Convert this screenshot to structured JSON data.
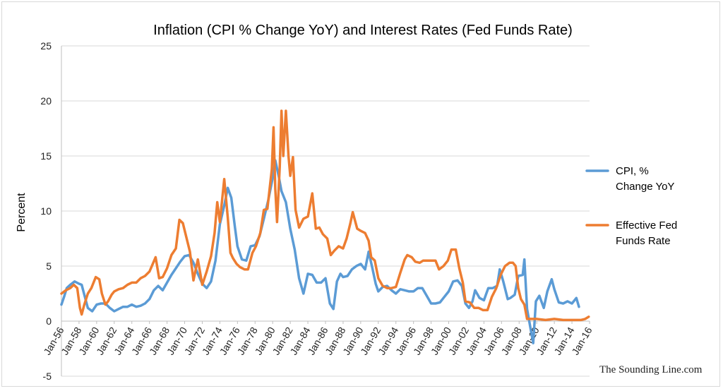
{
  "chart_data": {
    "type": "line",
    "title": "Inflation (CPI % Change YoY) and Interest Rates (Fed Funds Rate)",
    "ylabel": "Percent",
    "xlabel": "",
    "ylim": [
      -5,
      25
    ],
    "yticks": [
      -5,
      0,
      5,
      10,
      15,
      20,
      25
    ],
    "grid": "horizontal",
    "legend_position": "right",
    "x_tick_labels": [
      "Jan-56",
      "Jan-58",
      "Jan-60",
      "Jan-62",
      "Jan-64",
      "Jan-66",
      "Jan-68",
      "Jan-70",
      "Jan-72",
      "Jan-74",
      "Jan-76",
      "Jan-78",
      "Jan-80",
      "Jan-82",
      "Jan-84",
      "Jan-86",
      "Jan-88",
      "Jan-90",
      "Jan-92",
      "Jan-94",
      "Jan-96",
      "Jan-98",
      "Jan-00",
      "Jan-02",
      "Jan-04",
      "Jan-06",
      "Jan-08",
      "Jan-10",
      "Jan-12",
      "Jan-14",
      "Jan-16"
    ],
    "x_tick_years": [
      1956,
      1958,
      1960,
      1962,
      1964,
      1966,
      1968,
      1970,
      1972,
      1974,
      1976,
      1978,
      1980,
      1982,
      1984,
      1986,
      1988,
      1990,
      1992,
      1994,
      1996,
      1998,
      2000,
      2002,
      2004,
      2006,
      2008,
      2010,
      2012,
      2014,
      2016
    ],
    "series": [
      {
        "name": "CPI, % Change YoY",
        "color": "#5b9bd5",
        "points": [
          [
            1956.0,
            1.5
          ],
          [
            1956.3,
            2.2
          ],
          [
            1956.6,
            3.0
          ],
          [
            1957.0,
            3.3
          ],
          [
            1957.5,
            3.6
          ],
          [
            1958.0,
            3.4
          ],
          [
            1958.3,
            3.3
          ],
          [
            1958.6,
            2.4
          ],
          [
            1959.0,
            1.2
          ],
          [
            1959.5,
            0.9
          ],
          [
            1960.0,
            1.5
          ],
          [
            1960.5,
            1.6
          ],
          [
            1961.0,
            1.6
          ],
          [
            1961.5,
            1.2
          ],
          [
            1962.0,
            0.9
          ],
          [
            1962.5,
            1.1
          ],
          [
            1963.0,
            1.3
          ],
          [
            1963.5,
            1.3
          ],
          [
            1964.0,
            1.5
          ],
          [
            1964.5,
            1.3
          ],
          [
            1965.0,
            1.4
          ],
          [
            1965.5,
            1.6
          ],
          [
            1966.0,
            2.0
          ],
          [
            1966.5,
            2.8
          ],
          [
            1967.0,
            3.2
          ],
          [
            1967.5,
            2.8
          ],
          [
            1968.0,
            3.5
          ],
          [
            1968.5,
            4.2
          ],
          [
            1969.0,
            4.8
          ],
          [
            1969.5,
            5.4
          ],
          [
            1970.0,
            5.9
          ],
          [
            1970.5,
            6.0
          ],
          [
            1971.0,
            5.3
          ],
          [
            1971.5,
            4.3
          ],
          [
            1972.0,
            3.4
          ],
          [
            1972.5,
            3.0
          ],
          [
            1973.0,
            3.6
          ],
          [
            1973.5,
            5.5
          ],
          [
            1974.0,
            8.8
          ],
          [
            1974.5,
            10.5
          ],
          [
            1974.9,
            12.1
          ],
          [
            1975.3,
            11.2
          ],
          [
            1975.7,
            8.6
          ],
          [
            1976.0,
            6.8
          ],
          [
            1976.5,
            5.6
          ],
          [
            1977.0,
            5.5
          ],
          [
            1977.5,
            6.8
          ],
          [
            1978.0,
            6.9
          ],
          [
            1978.5,
            7.7
          ],
          [
            1979.0,
            9.3
          ],
          [
            1979.5,
            11.0
          ],
          [
            1980.0,
            13.0
          ],
          [
            1980.3,
            14.6
          ],
          [
            1980.7,
            13.1
          ],
          [
            1981.0,
            11.8
          ],
          [
            1981.5,
            10.8
          ],
          [
            1982.0,
            8.4
          ],
          [
            1982.5,
            6.5
          ],
          [
            1983.0,
            3.9
          ],
          [
            1983.5,
            2.5
          ],
          [
            1984.0,
            4.3
          ],
          [
            1984.5,
            4.2
          ],
          [
            1985.0,
            3.5
          ],
          [
            1985.5,
            3.5
          ],
          [
            1986.0,
            3.9
          ],
          [
            1986.5,
            1.6
          ],
          [
            1986.9,
            1.1
          ],
          [
            1987.3,
            3.6
          ],
          [
            1987.7,
            4.3
          ],
          [
            1988.0,
            4.0
          ],
          [
            1988.5,
            4.1
          ],
          [
            1989.0,
            4.7
          ],
          [
            1989.5,
            5.0
          ],
          [
            1990.0,
            5.2
          ],
          [
            1990.5,
            4.7
          ],
          [
            1990.9,
            6.3
          ],
          [
            1991.3,
            4.9
          ],
          [
            1991.7,
            3.4
          ],
          [
            1992.0,
            2.7
          ],
          [
            1992.5,
            3.1
          ],
          [
            1993.0,
            3.2
          ],
          [
            1993.5,
            2.8
          ],
          [
            1994.0,
            2.5
          ],
          [
            1994.5,
            2.9
          ],
          [
            1995.0,
            2.8
          ],
          [
            1995.5,
            2.7
          ],
          [
            1996.0,
            2.7
          ],
          [
            1996.5,
            3.0
          ],
          [
            1997.0,
            3.0
          ],
          [
            1997.5,
            2.3
          ],
          [
            1998.0,
            1.6
          ],
          [
            1998.5,
            1.6
          ],
          [
            1999.0,
            1.7
          ],
          [
            1999.5,
            2.2
          ],
          [
            2000.0,
            2.7
          ],
          [
            2000.5,
            3.6
          ],
          [
            2001.0,
            3.7
          ],
          [
            2001.5,
            3.2
          ],
          [
            2001.9,
            1.6
          ],
          [
            2002.3,
            1.2
          ],
          [
            2002.7,
            1.8
          ],
          [
            2003.0,
            2.8
          ],
          [
            2003.5,
            2.1
          ],
          [
            2004.0,
            1.9
          ],
          [
            2004.5,
            3.0
          ],
          [
            2005.0,
            3.0
          ],
          [
            2005.5,
            3.2
          ],
          [
            2005.8,
            4.7
          ],
          [
            2006.2,
            3.6
          ],
          [
            2006.7,
            2.0
          ],
          [
            2007.0,
            2.1
          ],
          [
            2007.5,
            2.4
          ],
          [
            2007.9,
            4.1
          ],
          [
            2008.4,
            4.2
          ],
          [
            2008.6,
            5.6
          ],
          [
            2008.9,
            1.1
          ],
          [
            2009.3,
            -0.7
          ],
          [
            2009.6,
            -2.0
          ],
          [
            2009.9,
            1.8
          ],
          [
            2010.3,
            2.3
          ],
          [
            2010.8,
            1.2
          ],
          [
            2011.2,
            2.7
          ],
          [
            2011.7,
            3.8
          ],
          [
            2012.0,
            2.9
          ],
          [
            2012.5,
            1.7
          ],
          [
            2013.0,
            1.6
          ],
          [
            2013.5,
            1.8
          ],
          [
            2014.0,
            1.6
          ],
          [
            2014.5,
            2.1
          ],
          [
            2014.8,
            1.3
          ]
        ]
      },
      {
        "name": "Effective Fed Funds Rate",
        "color": "#ed7d31",
        "points": [
          [
            1956.0,
            2.5
          ],
          [
            1956.5,
            2.8
          ],
          [
            1957.0,
            3.0
          ],
          [
            1957.4,
            3.3
          ],
          [
            1957.8,
            3.0
          ],
          [
            1958.1,
            1.2
          ],
          [
            1958.3,
            0.6
          ],
          [
            1958.6,
            1.5
          ],
          [
            1959.0,
            2.5
          ],
          [
            1959.4,
            3.0
          ],
          [
            1959.9,
            4.0
          ],
          [
            1960.3,
            3.8
          ],
          [
            1960.6,
            2.5
          ],
          [
            1961.0,
            1.5
          ],
          [
            1961.3,
            1.8
          ],
          [
            1961.7,
            2.4
          ],
          [
            1962.0,
            2.7
          ],
          [
            1962.5,
            2.9
          ],
          [
            1963.0,
            3.0
          ],
          [
            1963.5,
            3.3
          ],
          [
            1964.0,
            3.5
          ],
          [
            1964.5,
            3.5
          ],
          [
            1965.0,
            3.9
          ],
          [
            1965.5,
            4.1
          ],
          [
            1966.0,
            4.5
          ],
          [
            1966.7,
            5.8
          ],
          [
            1967.1,
            3.9
          ],
          [
            1967.5,
            4.0
          ],
          [
            1968.0,
            4.8
          ],
          [
            1968.5,
            6.0
          ],
          [
            1969.0,
            6.6
          ],
          [
            1969.4,
            9.2
          ],
          [
            1969.8,
            8.9
          ],
          [
            1970.2,
            7.6
          ],
          [
            1970.6,
            6.3
          ],
          [
            1971.0,
            3.7
          ],
          [
            1971.5,
            5.6
          ],
          [
            1972.0,
            3.3
          ],
          [
            1972.5,
            4.5
          ],
          [
            1973.0,
            5.9
          ],
          [
            1973.4,
            8.0
          ],
          [
            1973.7,
            10.8
          ],
          [
            1974.0,
            9.0
          ],
          [
            1974.5,
            12.9
          ],
          [
            1974.9,
            9.4
          ],
          [
            1975.2,
            6.2
          ],
          [
            1975.5,
            5.7
          ],
          [
            1975.9,
            5.2
          ],
          [
            1976.3,
            4.9
          ],
          [
            1976.8,
            4.7
          ],
          [
            1977.2,
            4.7
          ],
          [
            1977.7,
            6.2
          ],
          [
            1978.1,
            6.8
          ],
          [
            1978.6,
            8.0
          ],
          [
            1979.0,
            10.1
          ],
          [
            1979.4,
            10.2
          ],
          [
            1979.9,
            13.8
          ],
          [
            1980.1,
            17.6
          ],
          [
            1980.3,
            12.0
          ],
          [
            1980.5,
            9.0
          ],
          [
            1980.8,
            14.0
          ],
          [
            1981.0,
            19.1
          ],
          [
            1981.2,
            15.0
          ],
          [
            1981.5,
            19.1
          ],
          [
            1981.8,
            15.0
          ],
          [
            1982.0,
            13.2
          ],
          [
            1982.3,
            14.9
          ],
          [
            1982.6,
            10.1
          ],
          [
            1983.0,
            8.5
          ],
          [
            1983.5,
            9.3
          ],
          [
            1984.0,
            9.5
          ],
          [
            1984.5,
            11.6
          ],
          [
            1984.9,
            8.4
          ],
          [
            1985.3,
            8.5
          ],
          [
            1985.7,
            7.9
          ],
          [
            1986.2,
            7.5
          ],
          [
            1986.6,
            6.0
          ],
          [
            1987.0,
            6.4
          ],
          [
            1987.5,
            6.8
          ],
          [
            1988.0,
            6.6
          ],
          [
            1988.4,
            7.5
          ],
          [
            1988.8,
            8.8
          ],
          [
            1989.1,
            9.9
          ],
          [
            1989.6,
            8.4
          ],
          [
            1990.0,
            8.2
          ],
          [
            1990.5,
            8.0
          ],
          [
            1990.9,
            7.3
          ],
          [
            1991.2,
            5.8
          ],
          [
            1991.6,
            5.5
          ],
          [
            1992.0,
            3.9
          ],
          [
            1992.5,
            3.2
          ],
          [
            1993.0,
            3.0
          ],
          [
            1993.5,
            3.0
          ],
          [
            1994.0,
            3.1
          ],
          [
            1994.5,
            4.4
          ],
          [
            1995.0,
            5.6
          ],
          [
            1995.3,
            6.0
          ],
          [
            1995.8,
            5.8
          ],
          [
            1996.2,
            5.4
          ],
          [
            1996.7,
            5.3
          ],
          [
            1997.1,
            5.5
          ],
          [
            1997.6,
            5.5
          ],
          [
            1998.0,
            5.5
          ],
          [
            1998.5,
            5.5
          ],
          [
            1998.9,
            4.7
          ],
          [
            1999.4,
            5.0
          ],
          [
            1999.9,
            5.5
          ],
          [
            2000.3,
            6.5
          ],
          [
            2000.8,
            6.5
          ],
          [
            2001.2,
            4.8
          ],
          [
            2001.6,
            3.5
          ],
          [
            2001.9,
            1.8
          ],
          [
            2002.4,
            1.7
          ],
          [
            2002.9,
            1.2
          ],
          [
            2003.4,
            1.2
          ],
          [
            2003.9,
            1.0
          ],
          [
            2004.4,
            1.0
          ],
          [
            2004.9,
            2.2
          ],
          [
            2005.4,
            3.0
          ],
          [
            2005.9,
            4.2
          ],
          [
            2006.4,
            5.0
          ],
          [
            2006.9,
            5.3
          ],
          [
            2007.3,
            5.3
          ],
          [
            2007.6,
            5.0
          ],
          [
            2007.9,
            3.0
          ],
          [
            2008.2,
            2.0
          ],
          [
            2008.6,
            1.5
          ],
          [
            2008.9,
            0.2
          ],
          [
            2009.2,
            0.2
          ],
          [
            2010.0,
            0.2
          ],
          [
            2011.0,
            0.1
          ],
          [
            2012.0,
            0.2
          ],
          [
            2013.0,
            0.1
          ],
          [
            2014.0,
            0.1
          ],
          [
            2015.0,
            0.1
          ],
          [
            2015.5,
            0.2
          ],
          [
            2015.9,
            0.4
          ]
        ]
      }
    ]
  },
  "legend": {
    "cpi_line1": "CPI, %",
    "cpi_line2": "Change YoY",
    "fed_line1": "Effective Fed",
    "fed_line2": "Funds Rate"
  },
  "watermark": "The Sounding Line.com"
}
